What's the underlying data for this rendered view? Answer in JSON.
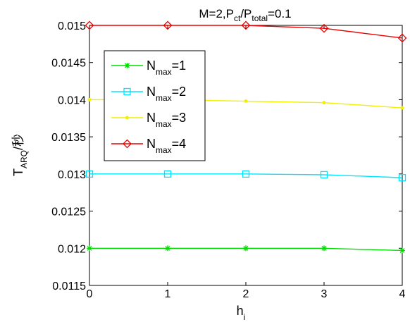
{
  "chart_data": {
    "type": "line",
    "title": {
      "main": "M=2,P",
      "sub1": "ct",
      "mid": "/P",
      "sub2": "total",
      "tail": "=0.1"
    },
    "xlabel": {
      "main": "h",
      "sub": "i"
    },
    "ylabel": {
      "main": "T",
      "sub": "ARQ",
      "tail": "/秒"
    },
    "x": [
      0,
      1,
      2,
      3,
      4
    ],
    "xlim": [
      0,
      4
    ],
    "ylim": [
      0.0115,
      0.015
    ],
    "xticks": [
      "0",
      "1",
      "2",
      "3",
      "4"
    ],
    "yticks": [
      {
        "value": 0.0115,
        "label": "0.0115"
      },
      {
        "value": 0.012,
        "label": "0.012"
      },
      {
        "value": 0.0125,
        "label": "0.0125"
      },
      {
        "value": 0.013,
        "label": "0.013"
      },
      {
        "value": 0.0135,
        "label": "0.0135"
      },
      {
        "value": 0.014,
        "label": "0.014"
      },
      {
        "value": 0.0145,
        "label": "0.0145"
      },
      {
        "value": 0.015,
        "label": "0.015"
      }
    ],
    "grid": false,
    "legend_position": "top-left",
    "series": [
      {
        "key": "n1",
        "legend": {
          "main": "N",
          "sub": "max",
          "tail": "=1"
        },
        "color": "#00dd00",
        "marker": "star",
        "values": [
          0.012,
          0.012,
          0.012,
          0.012,
          0.01197
        ]
      },
      {
        "key": "n2",
        "legend": {
          "main": "N",
          "sub": "max",
          "tail": "=2"
        },
        "color": "#00e5ff",
        "marker": "square",
        "values": [
          0.013,
          0.013,
          0.013,
          0.01299,
          0.01295
        ]
      },
      {
        "key": "n3",
        "legend": {
          "main": "N",
          "sub": "max",
          "tail": "=3"
        },
        "color": "#f0f000",
        "marker": "point",
        "values": [
          0.014,
          0.014,
          0.01398,
          0.01396,
          0.01389
        ]
      },
      {
        "key": "n4",
        "legend": {
          "main": "N",
          "sub": "max",
          "tail": "=4"
        },
        "color": "#ee0000",
        "marker": "diamond",
        "values": [
          0.015,
          0.015,
          0.015,
          0.01496,
          0.01483
        ]
      }
    ]
  }
}
